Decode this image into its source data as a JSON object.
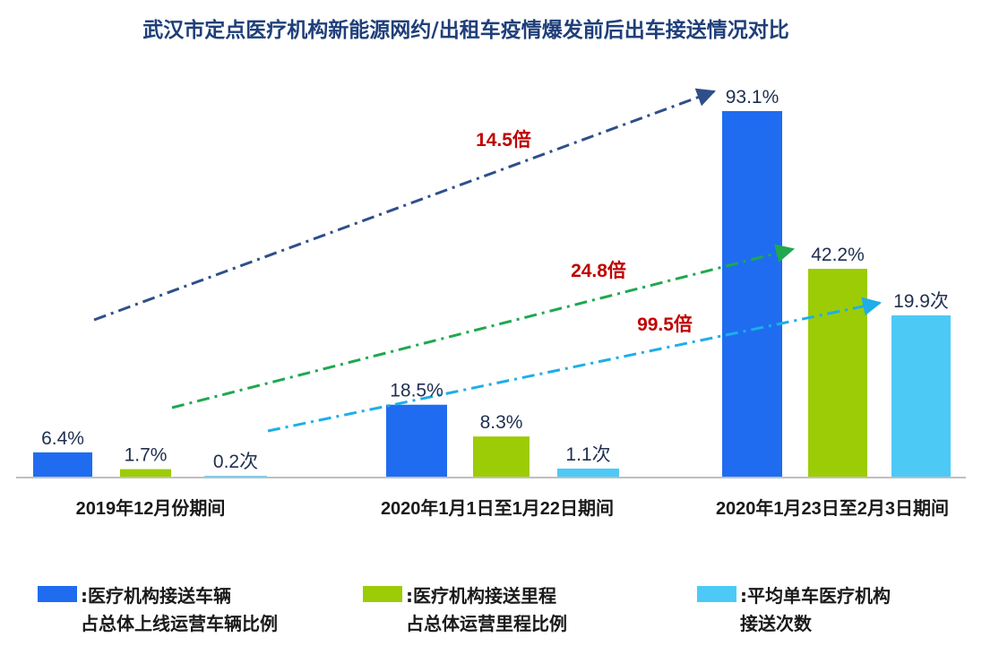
{
  "chart_data": {
    "type": "bar",
    "title": "武汉市定点医疗机构新能源网约/出租车疫情爆发前后出车接送情况对比",
    "categories": [
      "2019年12月份期间",
      "2020年1月1日至1月22日期间",
      "2020年1月23日至2月3日期间"
    ],
    "series": [
      {
        "name": ":医疗机构接送车辆\n占总体上线运营车辆比例",
        "color": "#1f6cf0",
        "values": [
          6.4,
          18.5,
          93.1
        ],
        "labels": [
          "6.4%",
          "18.5%",
          "93.1%"
        ],
        "growth_label": "14.5倍",
        "arrow_color": "#2e4f8a"
      },
      {
        "name": ":医疗机构接送里程\n占总体运营里程比例",
        "color": "#9ccc05",
        "values": [
          1.7,
          8.3,
          42.2
        ],
        "labels": [
          "1.7%",
          "8.3%",
          "42.2%"
        ],
        "growth_label": "24.8倍",
        "arrow_color": "#1fa84f"
      },
      {
        "name": ":平均单车医疗机构\n接送次数",
        "color": "#4dc9f6",
        "values": [
          0.2,
          1.1,
          19.9
        ],
        "labels": [
          "0.2次",
          "1.1次",
          "19.9次"
        ],
        "growth_label": "99.5倍",
        "arrow_color": "#1eaee8"
      }
    ],
    "annotation_color": "#c00000",
    "grid": false,
    "legend_position": "bottom"
  }
}
